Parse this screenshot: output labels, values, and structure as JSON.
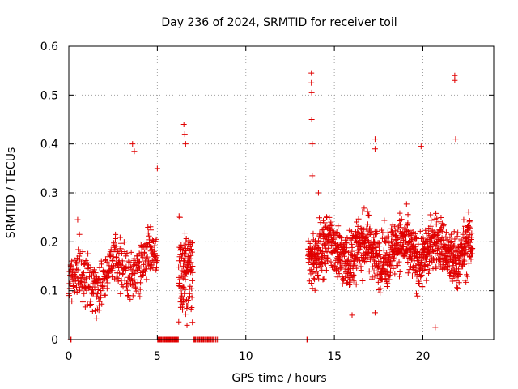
{
  "chart_data": {
    "type": "scatter",
    "title": "Day 236 of 2024, SRMTID for receiver toil",
    "xlabel": "GPS time / hours",
    "ylabel": "SRMTID / TECUs",
    "xlim": [
      0,
      24
    ],
    "ylim": [
      0,
      0.6
    ],
    "x_ticks": [
      0,
      5,
      10,
      15,
      20
    ],
    "x_tick_labels": [
      "0",
      "5",
      "10",
      "15",
      "20"
    ],
    "y_ticks": [
      0,
      0.1,
      0.2,
      0.3,
      0.4,
      0.5,
      0.6
    ],
    "y_tick_labels": [
      "0",
      "0.1",
      "0.2",
      "0.3",
      "0.4",
      "0.5",
      "0.6"
    ],
    "grid": true,
    "marker": "plus",
    "color": "#e00000",
    "series": [
      {
        "name": "SRMTID",
        "segments": [
          {
            "x_start": 0.0,
            "x_end": 5.0,
            "y_base": 0.14,
            "y_spread": 0.06,
            "count": 380
          },
          {
            "x_start": 5.0,
            "x_end": 6.2,
            "y_base": 0.0,
            "y_spread": 0.0,
            "count": 40
          },
          {
            "x_start": 6.2,
            "x_end": 7.0,
            "y_base": 0.12,
            "y_spread": 0.12,
            "count": 120
          },
          {
            "x_start": 7.0,
            "x_end": 8.4,
            "y_base": 0.0,
            "y_spread": 0.0,
            "count": 30
          },
          {
            "x_start": 13.5,
            "x_end": 22.8,
            "y_base": 0.18,
            "y_spread": 0.07,
            "count": 1100
          }
        ],
        "highlights": [
          {
            "x": 3.6,
            "y": 0.4
          },
          {
            "x": 3.7,
            "y": 0.385
          },
          {
            "x": 5.0,
            "y": 0.35
          },
          {
            "x": 6.5,
            "y": 0.44
          },
          {
            "x": 6.55,
            "y": 0.42
          },
          {
            "x": 6.6,
            "y": 0.4
          },
          {
            "x": 13.7,
            "y": 0.545
          },
          {
            "x": 13.7,
            "y": 0.525
          },
          {
            "x": 13.72,
            "y": 0.505
          },
          {
            "x": 13.72,
            "y": 0.45
          },
          {
            "x": 13.75,
            "y": 0.4
          },
          {
            "x": 13.75,
            "y": 0.335
          },
          {
            "x": 17.3,
            "y": 0.41
          },
          {
            "x": 17.3,
            "y": 0.39
          },
          {
            "x": 19.9,
            "y": 0.395
          },
          {
            "x": 21.8,
            "y": 0.54
          },
          {
            "x": 21.8,
            "y": 0.53
          },
          {
            "x": 21.85,
            "y": 0.41
          },
          {
            "x": 0.5,
            "y": 0.245
          },
          {
            "x": 0.6,
            "y": 0.215
          },
          {
            "x": 16.0,
            "y": 0.05
          },
          {
            "x": 17.3,
            "y": 0.055
          },
          {
            "x": 20.7,
            "y": 0.025
          },
          {
            "x": 14.1,
            "y": 0.3
          }
        ],
        "zero_points": [
          0.1,
          13.45
        ]
      }
    ]
  }
}
